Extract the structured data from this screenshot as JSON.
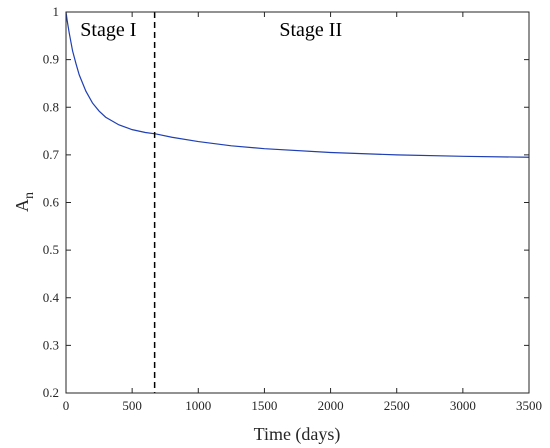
{
  "chart_data": {
    "type": "line",
    "title": "",
    "xlabel": "Time (days)",
    "ylabel": {
      "base": "A",
      "subscript": "n"
    },
    "xlim": [
      0,
      3500
    ],
    "ylim": [
      0.2,
      1.0
    ],
    "xticks": [
      0,
      500,
      1000,
      1500,
      2000,
      2500,
      3000,
      3500
    ],
    "yticks": [
      0.2,
      0.3,
      0.4,
      0.5,
      0.6,
      0.7,
      0.8,
      0.9,
      1.0
    ],
    "ytick_labels": [
      "0.2",
      "0.3",
      "0.4",
      "0.5",
      "0.6",
      "0.7",
      "0.8",
      "0.9",
      "1"
    ],
    "grid": false,
    "series": [
      {
        "color": "#1f3fb4",
        "x": [
          0,
          10,
          25,
          50,
          75,
          100,
          150,
          200,
          250,
          300,
          400,
          500,
          600,
          680,
          800,
          1000,
          1250,
          1500,
          2000,
          2500,
          3000,
          3500
        ],
        "y": [
          1.0,
          0.98,
          0.955,
          0.918,
          0.892,
          0.868,
          0.834,
          0.809,
          0.792,
          0.779,
          0.763,
          0.753,
          0.747,
          0.744,
          0.737,
          0.728,
          0.719,
          0.713,
          0.705,
          0.7,
          0.697,
          0.695
        ]
      }
    ],
    "divider": {
      "x": 670,
      "style": "dashed",
      "color": "#000000"
    },
    "annotations": [
      {
        "text": "Stage I",
        "x": 320,
        "y": 0.95
      },
      {
        "text": "Stage II",
        "x": 1850,
        "y": 0.95
      }
    ]
  }
}
